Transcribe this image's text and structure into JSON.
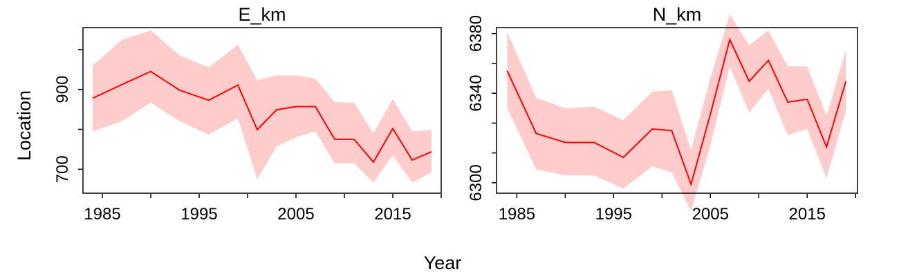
{
  "figure": {
    "xlabel": "Year",
    "ylabel": "Location"
  },
  "colors": {
    "line": "#ff0000",
    "band": "#ffcccc",
    "axis": "#000000"
  },
  "chart_data": [
    {
      "type": "line",
      "title": "E_km",
      "xlabel": "Year",
      "ylabel": "Location",
      "xlim": [
        1983,
        2020
      ],
      "ylim": [
        640,
        1055
      ],
      "x_ticks": [
        1985,
        1990,
        1995,
        2000,
        2005,
        2010,
        2015,
        2020
      ],
      "x_tick_labels": [
        "1985",
        "",
        "1995",
        "",
        "2005",
        "",
        "2015",
        ""
      ],
      "y_ticks": [
        700,
        800,
        900,
        1000
      ],
      "y_tick_labels": [
        "700",
        "",
        "900",
        ""
      ],
      "series": [
        {
          "x": [
            1984,
            1987,
            1990,
            1993,
            1996,
            1999,
            2001,
            2003,
            2005,
            2007,
            2009,
            2011,
            2013,
            2015,
            2017,
            2019
          ],
          "values": [
            878,
            912,
            945,
            898,
            873,
            911,
            799,
            849,
            857,
            857,
            775,
            775,
            718,
            802,
            723,
            744
          ],
          "lower": [
            795,
            820,
            867,
            820,
            787,
            828,
            675,
            757,
            780,
            795,
            715,
            715,
            667,
            735,
            667,
            692
          ],
          "upper": [
            960,
            1024,
            1048,
            985,
            955,
            1012,
            923,
            935,
            935,
            927,
            868,
            867,
            790,
            876,
            795,
            798
          ]
        }
      ]
    },
    {
      "type": "line",
      "title": "N_km",
      "xlabel": "Year",
      "ylabel": "Location",
      "xlim": [
        1982.9,
        2020.2
      ],
      "ylim": [
        6293,
        6404
      ],
      "x_ticks": [
        1985,
        1990,
        1995,
        2000,
        2005,
        2010,
        2015,
        2020
      ],
      "x_tick_labels": [
        "1985",
        "",
        "1995",
        "",
        "2005",
        "",
        "2015",
        ""
      ],
      "y_ticks": [
        6300,
        6320,
        6340,
        6360,
        6380,
        6400
      ],
      "y_tick_labels": [
        "6300",
        "",
        "",
        "6340",
        "",
        "6380"
      ],
      "series": [
        {
          "x": [
            1984,
            1987,
            1990,
            1993,
            1996,
            1999,
            2001,
            2003,
            2005,
            2007,
            2009,
            2011,
            2013,
            2015,
            2017,
            2019
          ],
          "values": [
            6375,
            6333,
            6327,
            6327,
            6317,
            6336,
            6335,
            6299,
            6346,
            6396,
            6368,
            6382,
            6354,
            6356,
            6324,
            6368
          ],
          "lower": [
            6350,
            6309,
            6305,
            6305,
            6296,
            6311,
            6307,
            6281,
            6325,
            6378,
            6347,
            6363,
            6332,
            6336,
            6303,
            6348
          ],
          "upper": [
            6401,
            6357,
            6350,
            6351,
            6342,
            6361,
            6362,
            6322,
            6370,
            6413,
            6392,
            6402,
            6378,
            6378,
            6345,
            6389
          ]
        }
      ]
    }
  ]
}
